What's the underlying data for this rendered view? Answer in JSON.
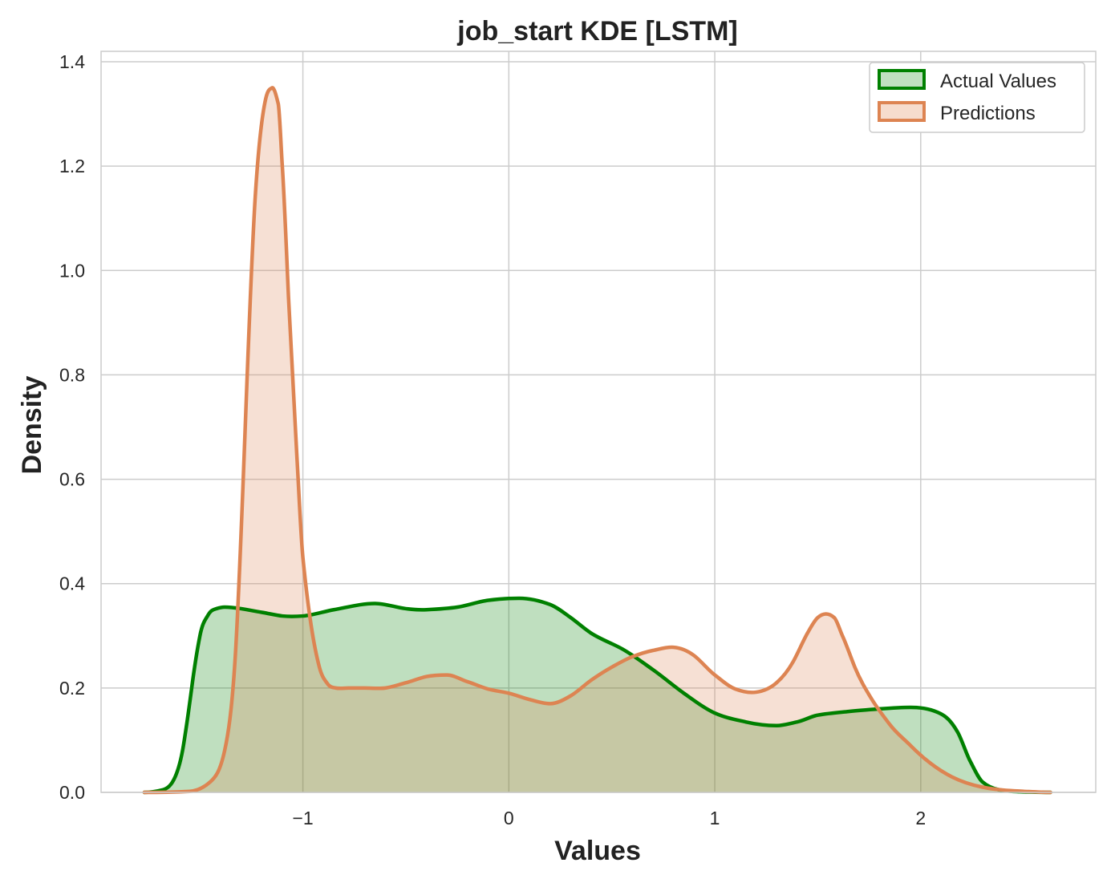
{
  "chart_data": {
    "type": "area",
    "title": "job_start KDE [LSTM]",
    "xlabel": "Values",
    "ylabel": "Density",
    "xlim": [
      -1.98,
      2.85
    ],
    "ylim": [
      0,
      1.42
    ],
    "x_ticks": [
      -1,
      0,
      1,
      2
    ],
    "x_tick_labels": [
      "−1",
      "0",
      "1",
      "2"
    ],
    "y_ticks": [
      0.0,
      0.2,
      0.4,
      0.6,
      0.8,
      1.0,
      1.2,
      1.4
    ],
    "y_tick_labels": [
      "0.0",
      "0.2",
      "0.4",
      "0.6",
      "0.8",
      "1.0",
      "1.2",
      "1.4"
    ],
    "grid": true,
    "legend_position": "top-right",
    "series": [
      {
        "name": "Actual Values",
        "color": "#008000",
        "fill": "#c0e0c0",
        "x": [
          -1.77,
          -1.68,
          -1.62,
          -1.58,
          -1.54,
          -1.5,
          -1.46,
          -1.42,
          -1.38,
          -1.3,
          -1.2,
          -1.1,
          -1.0,
          -0.85,
          -0.65,
          -0.5,
          -0.4,
          -0.25,
          -0.1,
          0.05,
          0.2,
          0.3,
          0.4,
          0.55,
          0.7,
          0.85,
          1.0,
          1.15,
          1.3,
          1.4,
          1.5,
          1.65,
          1.8,
          1.95,
          2.05,
          2.12,
          2.18,
          2.24,
          2.3,
          2.38,
          2.5,
          2.63
        ],
        "y": [
          0.0,
          0.005,
          0.03,
          0.09,
          0.2,
          0.3,
          0.34,
          0.352,
          0.355,
          0.352,
          0.345,
          0.338,
          0.338,
          0.35,
          0.362,
          0.352,
          0.35,
          0.355,
          0.368,
          0.372,
          0.36,
          0.335,
          0.305,
          0.275,
          0.235,
          0.19,
          0.152,
          0.135,
          0.128,
          0.135,
          0.148,
          0.155,
          0.16,
          0.163,
          0.158,
          0.145,
          0.115,
          0.06,
          0.02,
          0.005,
          0.001,
          0.0
        ],
        "dy": [
          0.0,
          0.1,
          0.9,
          2.4,
          3.0,
          2.0,
          0.7,
          0.12,
          0.0,
          -0.06,
          -0.06,
          -0.04,
          0.03,
          0.07,
          0.0,
          -0.05,
          0.02,
          0.06,
          0.05,
          0.0,
          -0.15,
          -0.28,
          -0.25,
          -0.22,
          -0.28,
          -0.28,
          -0.18,
          -0.09,
          0.0,
          0.08,
          0.07,
          0.04,
          0.03,
          0.0,
          -0.12,
          -0.3,
          -0.7,
          -0.75,
          -0.35,
          -0.08,
          -0.01,
          0.0
        ]
      },
      {
        "name": "Predictions",
        "color": "#dd8452",
        "fill": "#f6dccd",
        "x": [
          -1.77,
          -1.55,
          -1.45,
          -1.38,
          -1.33,
          -1.28,
          -1.23,
          -1.18,
          -1.15,
          -1.12,
          -1.1,
          -1.07,
          -1.03,
          -1.0,
          -0.96,
          -0.92,
          -0.88,
          -0.84,
          -0.78,
          -0.7,
          -0.6,
          -0.5,
          -0.4,
          -0.3,
          -0.2,
          -0.1,
          0.0,
          0.1,
          0.2,
          0.3,
          0.4,
          0.5,
          0.6,
          0.7,
          0.8,
          0.9,
          1.0,
          1.1,
          1.2,
          1.3,
          1.38,
          1.45,
          1.5,
          1.54,
          1.58,
          1.62,
          1.68,
          1.76,
          1.85,
          1.95,
          2.05,
          2.15,
          2.3,
          2.5,
          2.63
        ],
        "y": [
          0.0,
          0.002,
          0.02,
          0.08,
          0.25,
          0.7,
          1.15,
          1.33,
          1.35,
          1.32,
          1.2,
          0.95,
          0.65,
          0.45,
          0.32,
          0.24,
          0.208,
          0.2,
          0.2,
          0.2,
          0.2,
          0.21,
          0.222,
          0.225,
          0.212,
          0.198,
          0.19,
          0.178,
          0.17,
          0.185,
          0.215,
          0.24,
          0.26,
          0.272,
          0.278,
          0.262,
          0.225,
          0.198,
          0.192,
          0.21,
          0.25,
          0.305,
          0.335,
          0.342,
          0.335,
          0.3,
          0.24,
          0.18,
          0.13,
          0.09,
          0.055,
          0.03,
          0.01,
          0.002,
          0.0
        ],
        "dy": [
          0.0,
          0.02,
          0.35,
          1.8,
          6.0,
          10.5,
          6.0,
          1.7,
          0.2,
          -1.6,
          -6.0,
          -8.8,
          -6.8,
          -4.0,
          -2.6,
          -1.5,
          -0.55,
          -0.08,
          0.0,
          0.0,
          0.05,
          0.1,
          0.08,
          0.0,
          -0.12,
          -0.1,
          -0.09,
          -0.1,
          0.0,
          0.23,
          0.28,
          0.22,
          0.15,
          0.08,
          -0.03,
          -0.3,
          -0.3,
          -0.15,
          0.05,
          0.35,
          0.7,
          0.7,
          0.35,
          0.0,
          -0.35,
          -0.85,
          -0.95,
          -0.65,
          -0.52,
          -0.4,
          -0.3,
          -0.2,
          -0.08,
          -0.02,
          0.0
        ]
      }
    ]
  }
}
